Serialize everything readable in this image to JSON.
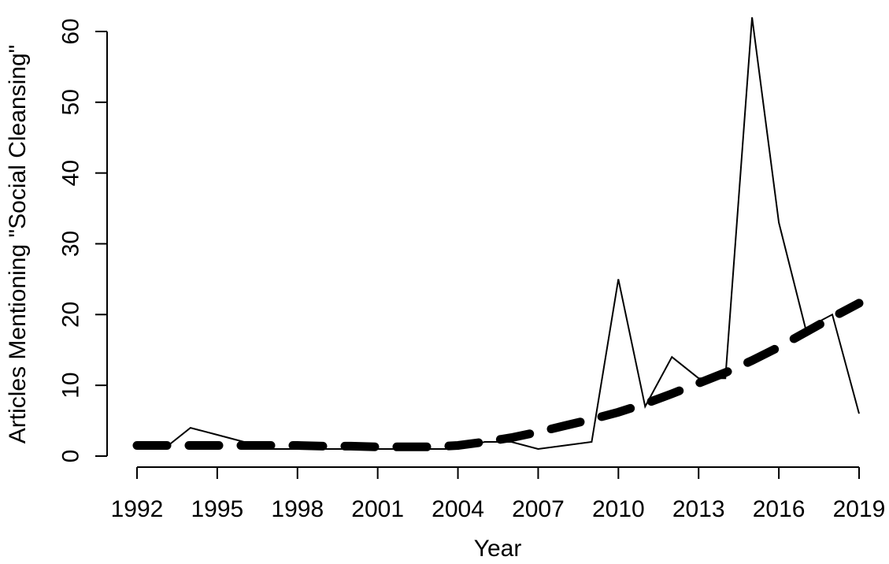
{
  "chart_data": {
    "type": "line",
    "xlabel": "Year",
    "ylabel": "Articles Mentioning \"Social Cleansing\"",
    "xlim": [
      1992,
      2019
    ],
    "ylim": [
      0,
      62
    ],
    "x_ticks": [
      1992,
      1995,
      1998,
      2001,
      2004,
      2007,
      2010,
      2013,
      2016,
      2019
    ],
    "y_ticks": [
      0,
      10,
      20,
      30,
      40,
      50,
      60
    ],
    "grid": false,
    "series": [
      {
        "style": "solid-thin",
        "x": [
          1992,
          1993,
          1994,
          1995,
          1996,
          1997,
          1998,
          1999,
          2000,
          2001,
          2002,
          2003,
          2004,
          2005,
          2006,
          2007,
          2008,
          2009,
          2010,
          2011,
          2012,
          2013,
          2014,
          2015,
          2016,
          2017,
          2018,
          2019
        ],
        "y": [
          1,
          1,
          4,
          3,
          2,
          1,
          1,
          1,
          1,
          1,
          1,
          1,
          1,
          2,
          2,
          1,
          1.5,
          2,
          25,
          7,
          14,
          11,
          11,
          62,
          33,
          18,
          20,
          6
        ]
      },
      {
        "style": "dashed-thick",
        "x": [
          1992,
          1993,
          1994,
          1995,
          1996,
          1997,
          1998,
          1999,
          2000,
          2001,
          2002,
          2003,
          2004,
          2005,
          2006,
          2007,
          2008,
          2009,
          2010,
          2011,
          2012,
          2013,
          2014,
          2015,
          2016,
          2017,
          2018,
          2019
        ],
        "y": [
          1.5,
          1.5,
          1.5,
          1.5,
          1.5,
          1.5,
          1.5,
          1.4,
          1.4,
          1.3,
          1.3,
          1.3,
          1.5,
          2.0,
          2.6,
          3.4,
          4.3,
          5.2,
          6.2,
          7.4,
          8.8,
          10.3,
          11.8,
          13.5,
          15.4,
          17.5,
          19.6,
          21.6
        ]
      }
    ]
  }
}
